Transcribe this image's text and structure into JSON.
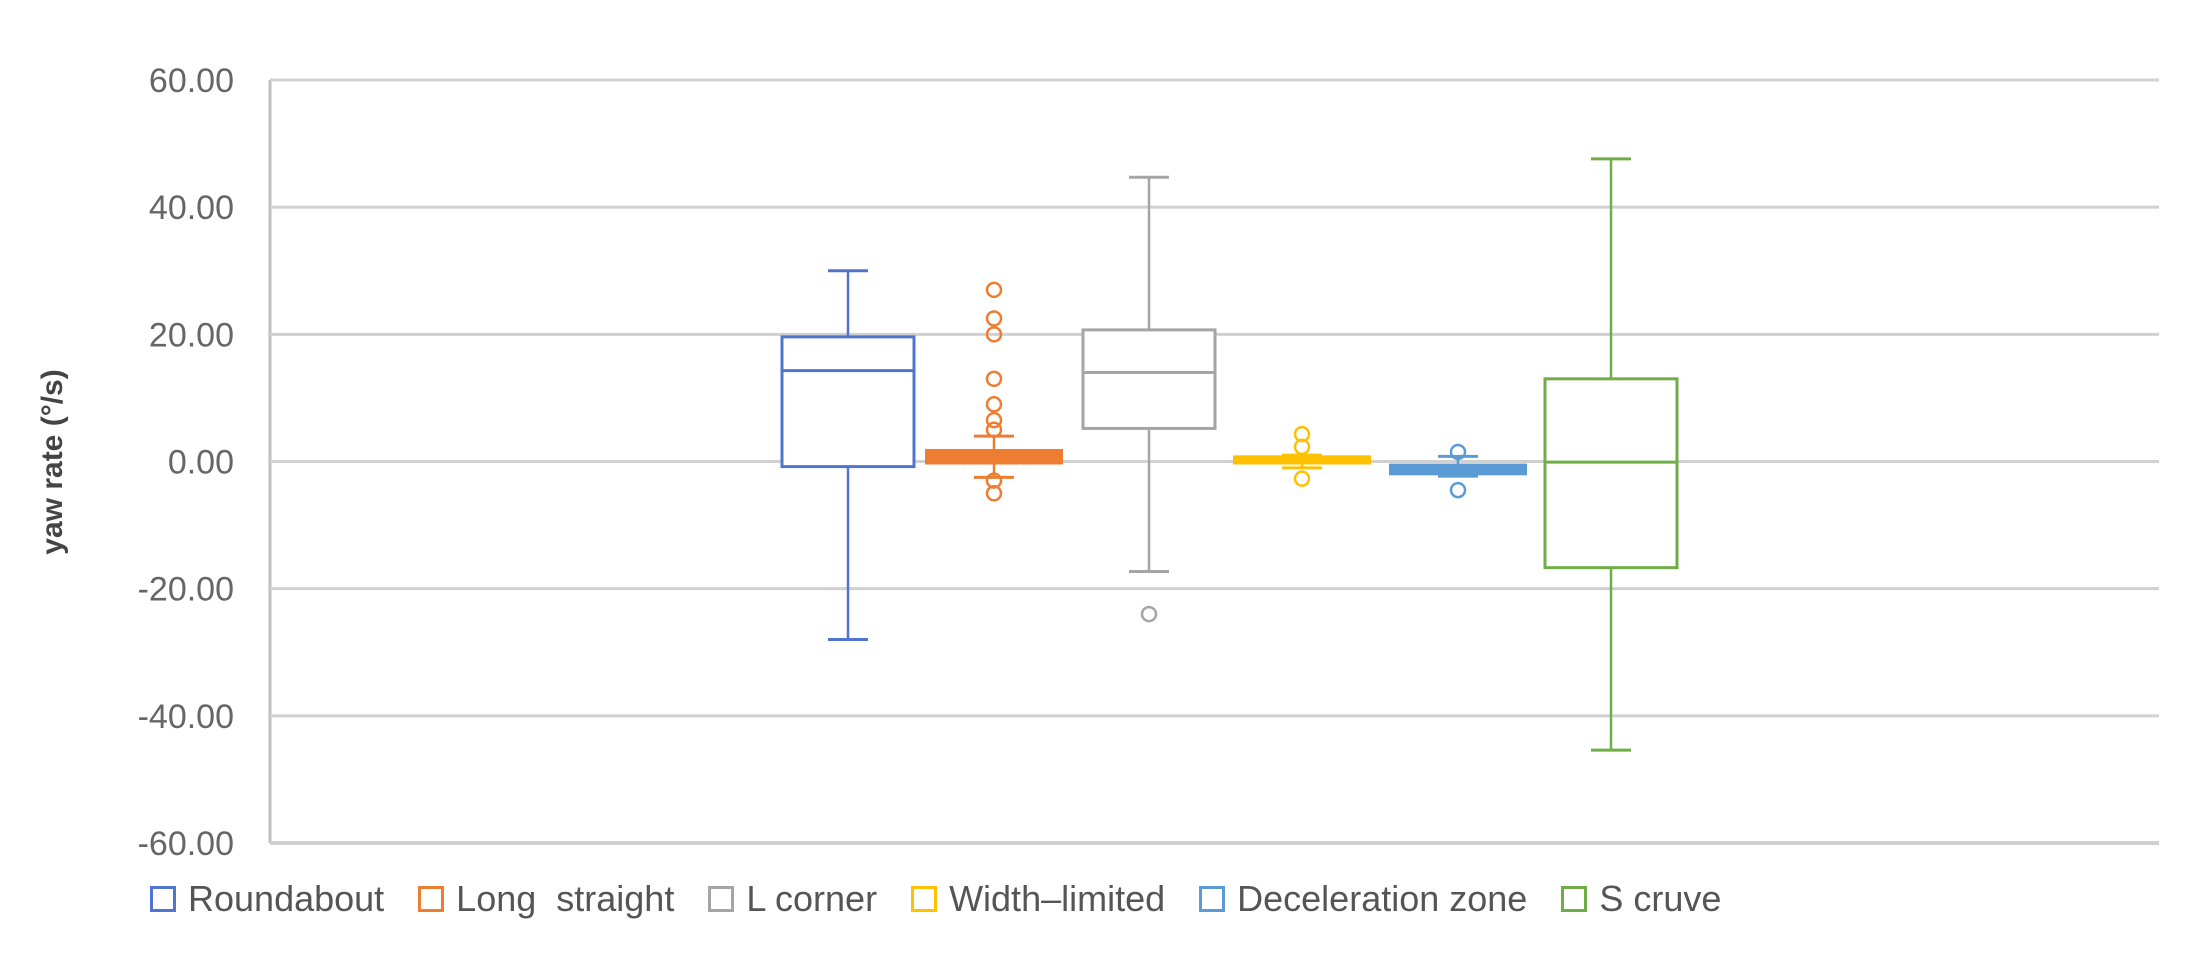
{
  "chart_data": {
    "type": "box",
    "title": "",
    "xlabel": "",
    "ylabel": "yaw rate (°/s)",
    "ylim": [
      -60,
      60
    ],
    "yticks": [
      "60.00",
      "40.00",
      "20.00",
      "0.00",
      "-20.00",
      "-40.00",
      "-60.00"
    ],
    "ytick_values": [
      60,
      40,
      20,
      0,
      -20,
      -40,
      -60
    ],
    "grid": true,
    "legend_position": "bottom",
    "series": [
      {
        "name": "Roundabout",
        "color": "#4F75D1",
        "whisker_low": -28,
        "q1": -0.8,
        "median": 14.3,
        "q3": 19.6,
        "whisker_high": 30,
        "outliers": []
      },
      {
        "name": "Long  straight",
        "color": "#ED7D31",
        "whisker_low": -2.5,
        "q1": 0,
        "median": 0.7,
        "q3": 1.5,
        "whisker_high": 4,
        "outliers": [
          27,
          22.5,
          20,
          13,
          9,
          6.5,
          5,
          -3,
          -5
        ]
      },
      {
        "name": "L corner",
        "color": "#A5A5A5",
        "whisker_low": -17.3,
        "q1": 5.2,
        "median": 14,
        "q3": 20.7,
        "whisker_high": 44.7,
        "outliers": [
          -24
        ]
      },
      {
        "name": "Width–limited",
        "color": "#FFC000",
        "whisker_low": -1,
        "q1": 0,
        "median": 0.3,
        "q3": 0.5,
        "whisker_high": 1,
        "outliers": [
          4.3,
          2.3,
          -2.7
        ]
      },
      {
        "name": "Deceleration zone",
        "color": "#5B9BD5",
        "whisker_low": -2.3,
        "q1": -1.7,
        "median": -1.2,
        "q3": -0.8,
        "whisker_high": 0.8,
        "outliers": [
          1.5,
          -4.5
        ]
      },
      {
        "name": "S cruve",
        "color": "#70AD47",
        "whisker_low": -45.4,
        "q1": -16.7,
        "median": -0.1,
        "q3": 13,
        "whisker_high": 47.6,
        "outliers": []
      }
    ]
  }
}
